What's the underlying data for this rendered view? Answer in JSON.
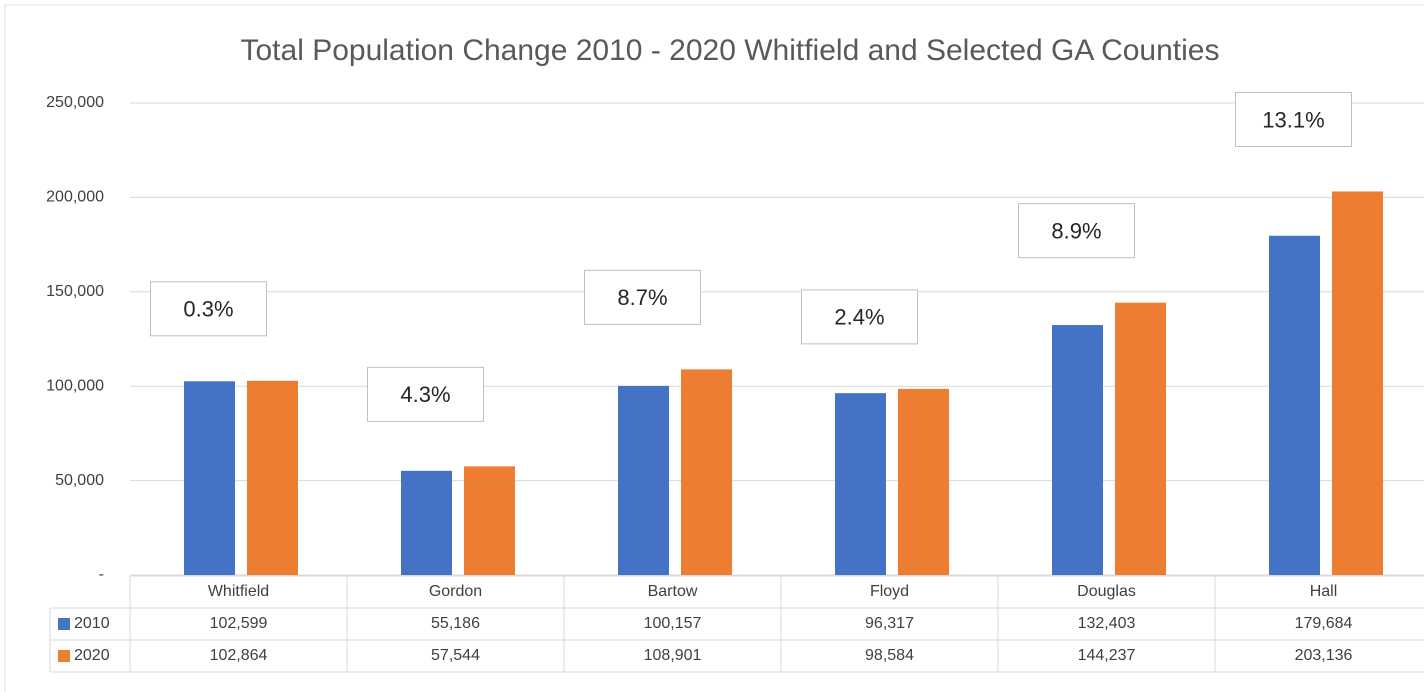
{
  "chart_data": {
    "type": "bar",
    "title": "Total Population Change 2010 - 2020 Whitfield and Selected GA Counties",
    "categories": [
      "Whitfield",
      "Gordon",
      "Bartow",
      "Floyd",
      "Douglas",
      "Hall"
    ],
    "series": [
      {
        "name": "2010",
        "color": "#4472c4",
        "values": [
          102599,
          55186,
          100157,
          96317,
          132403,
          179684
        ],
        "value_labels": [
          "102,599",
          "55,186",
          "100,157",
          "96,317",
          "132,403",
          "179,684"
        ]
      },
      {
        "name": "2020",
        "color": "#ed7d31",
        "values": [
          102864,
          57544,
          108901,
          98584,
          144237,
          203136
        ],
        "value_labels": [
          "102,864",
          "57,544",
          "108,901",
          "98,584",
          "144,237",
          "203,136"
        ]
      }
    ],
    "annotations": [
      "0.3%",
      "4.3%",
      "8.7%",
      "2.4%",
      "8.9%",
      "13.1%"
    ],
    "ylim": [
      0,
      250000
    ],
    "yticks": [
      {
        "value": 0,
        "label": "-"
      },
      {
        "value": 50000,
        "label": "50,000"
      },
      {
        "value": 100000,
        "label": "100,000"
      },
      {
        "value": 150000,
        "label": "150,000"
      },
      {
        "value": 200000,
        "label": "200,000"
      },
      {
        "value": 250000,
        "label": "250,000"
      }
    ],
    "grid": true,
    "legend": "table"
  }
}
